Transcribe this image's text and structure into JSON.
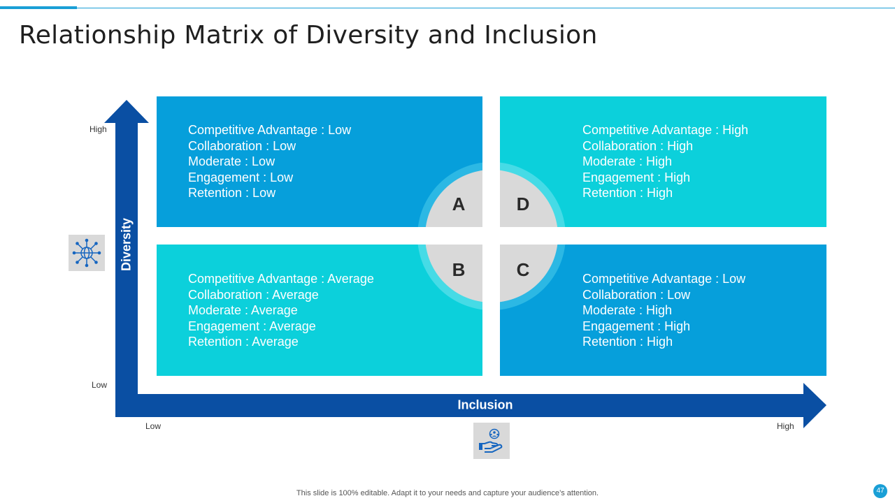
{
  "title": "Relationship Matrix of Diversity and Inclusion",
  "axes": {
    "y": {
      "title": "Diversity",
      "high_label": "High",
      "low_label": "Low",
      "icon": "globe-network-icon"
    },
    "x": {
      "title": "Inclusion",
      "low_label": "Low",
      "high_label": "High",
      "icon": "hand-people-icon"
    }
  },
  "quadrants": {
    "a": {
      "letter": "A",
      "lines": [
        "Competitive Advantage : Low",
        "Collaboration : Low",
        "Moderate : Low",
        "Engagement : Low",
        "Retention : Low"
      ]
    },
    "d": {
      "letter": "D",
      "lines": [
        "Competitive Advantage : High",
        "Collaboration : High",
        "Moderate : High",
        "Engagement : High",
        "Retention : High"
      ]
    },
    "b": {
      "letter": "B",
      "lines": [
        "Competitive Advantage : Average",
        "Collaboration : Average",
        "Moderate : Average",
        "Engagement : Average",
        "Retention : Average"
      ]
    },
    "c": {
      "letter": "C",
      "lines": [
        "Competitive Advantage : Low",
        "Collaboration : Low",
        "Moderate : High",
        "Engagement : High",
        "Retention : High"
      ]
    }
  },
  "colors": {
    "dark_blue": "#069fdb",
    "cyan": "#0cd0db",
    "axis_navy": "#0a4fa3",
    "accent": "#1a9fd6"
  },
  "footer": "This slide is 100% editable. Adapt it to your needs and capture your audience’s attention.",
  "page_number": "47"
}
